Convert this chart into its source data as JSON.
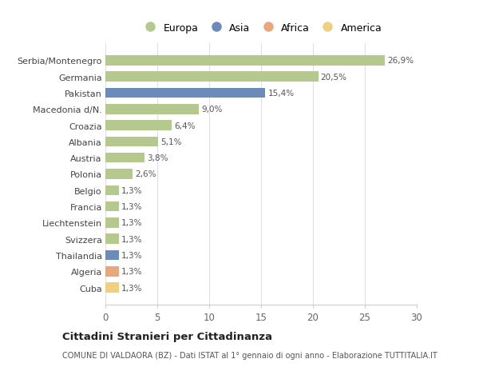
{
  "countries": [
    "Serbia/Montenegro",
    "Germania",
    "Pakistan",
    "Macedonia d/N.",
    "Croazia",
    "Albania",
    "Austria",
    "Polonia",
    "Belgio",
    "Francia",
    "Liechtenstein",
    "Svizzera",
    "Thailandia",
    "Algeria",
    "Cuba"
  ],
  "values": [
    26.9,
    20.5,
    15.4,
    9.0,
    6.4,
    5.1,
    3.8,
    2.6,
    1.3,
    1.3,
    1.3,
    1.3,
    1.3,
    1.3,
    1.3
  ],
  "labels": [
    "26,9%",
    "20,5%",
    "15,4%",
    "9,0%",
    "6,4%",
    "5,1%",
    "3,8%",
    "2,6%",
    "1,3%",
    "1,3%",
    "1,3%",
    "1,3%",
    "1,3%",
    "1,3%",
    "1,3%"
  ],
  "continents": [
    "Europa",
    "Europa",
    "Asia",
    "Europa",
    "Europa",
    "Europa",
    "Europa",
    "Europa",
    "Europa",
    "Europa",
    "Europa",
    "Europa",
    "Asia",
    "Africa",
    "America"
  ],
  "colors": {
    "Europa": "#b5c98e",
    "Asia": "#6b8cba",
    "Africa": "#e8a87c",
    "America": "#f0d080"
  },
  "title": "Cittadini Stranieri per Cittadinanza",
  "subtitle": "COMUNE DI VALDAORA (BZ) - Dati ISTAT al 1° gennaio di ogni anno - Elaborazione TUTTITALIA.IT",
  "xlim": [
    0,
    30
  ],
  "xticks": [
    0,
    5,
    10,
    15,
    20,
    25,
    30
  ],
  "background_color": "#ffffff",
  "grid_color": "#e0e0e0",
  "legend_order": [
    "Europa",
    "Asia",
    "Africa",
    "America"
  ]
}
